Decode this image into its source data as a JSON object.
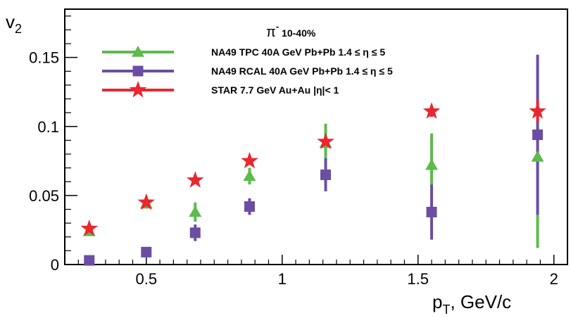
{
  "chart_data": {
    "type": "scatter",
    "title": "",
    "xlabel_main": "p",
    "xlabel_sub": "T",
    "xlabel_rest": ", GeV/c",
    "ylabel_main": "v",
    "ylabel_sub": "2",
    "xlim": [
      0.2,
      2.05
    ],
    "ylim": [
      0,
      0.185
    ],
    "xticks": [
      0.5,
      1,
      1.5,
      2
    ],
    "xtick_labels": [
      "0.5",
      "1",
      "1.5",
      "2"
    ],
    "yticks": [
      0,
      0.05,
      0.1,
      0.15
    ],
    "ytick_labels": [
      "0",
      "0.05",
      "0.1",
      "0.15"
    ],
    "legend_header_symbol": "π",
    "legend_header_sup": "-",
    "legend_header_rest": " 10-40%",
    "legend_placement": "top-left",
    "series": [
      {
        "name": "NA49 TPC 40A GeV  Pb+Pb 1.4 ≤ η ≤ 5",
        "marker": "triangle",
        "color": "#5cbb4b",
        "x": [
          0.29,
          0.5,
          0.68,
          0.88,
          1.16,
          1.55,
          1.94
        ],
        "y": [
          0.024,
          0.044,
          0.038,
          0.064,
          0.088,
          0.072,
          0.078
        ],
        "yerr": [
          0.002,
          0.002,
          0.007,
          0.006,
          0.014,
          0.023,
          0.066
        ]
      },
      {
        "name": "NA49 RCAL 40A GeV  Pb+Pb 1.4 ≤ η ≤ 5",
        "marker": "square",
        "color": "#6b4ea3",
        "x": [
          0.29,
          0.5,
          0.68,
          0.88,
          1.16,
          1.55,
          1.94
        ],
        "y": [
          0.003,
          0.009,
          0.023,
          0.042,
          0.065,
          0.038,
          0.094
        ],
        "yerr": [
          0.001,
          0.001,
          0.006,
          0.006,
          0.012,
          0.02,
          0.058
        ]
      },
      {
        "name": "STAR 7.7 GeV  Au+Au |η|< 1",
        "marker": "star",
        "color": "#e8282e",
        "x": [
          0.29,
          0.5,
          0.68,
          0.88,
          1.16,
          1.55,
          1.94
        ],
        "y": [
          0.026,
          0.045,
          0.061,
          0.075,
          0.089,
          0.111,
          0.111
        ],
        "yerr": [
          0.001,
          0.001,
          0.001,
          0.002,
          0.003,
          0.004,
          0.008
        ]
      }
    ]
  }
}
